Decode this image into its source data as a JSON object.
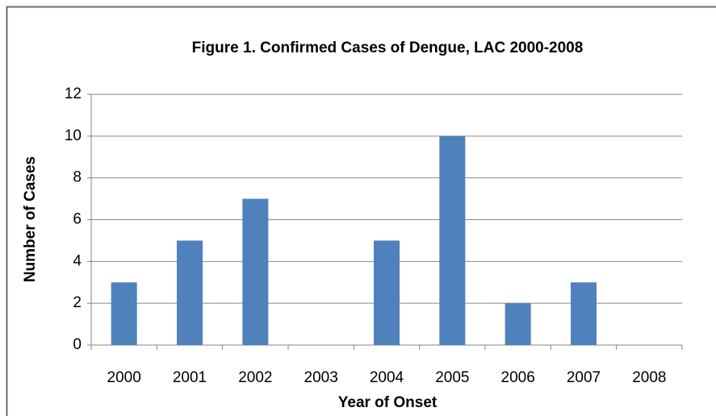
{
  "chart_data": {
    "type": "bar",
    "title": "Figure 1. Confirmed Cases of Dengue, LAC 2000-2008",
    "x_label": "Year of Onset",
    "y_label": "Number of Cases",
    "categories": [
      "2000",
      "2001",
      "2002",
      "2003",
      "2004",
      "2005",
      "2006",
      "2007",
      "2008"
    ],
    "values": [
      3,
      5,
      7,
      0,
      5,
      10,
      2,
      3,
      0
    ],
    "color": "#4f81bd",
    "ylim": [
      0,
      12
    ],
    "yticks": [
      0,
      2,
      4,
      6,
      8,
      10,
      12
    ],
    "grid": true
  }
}
